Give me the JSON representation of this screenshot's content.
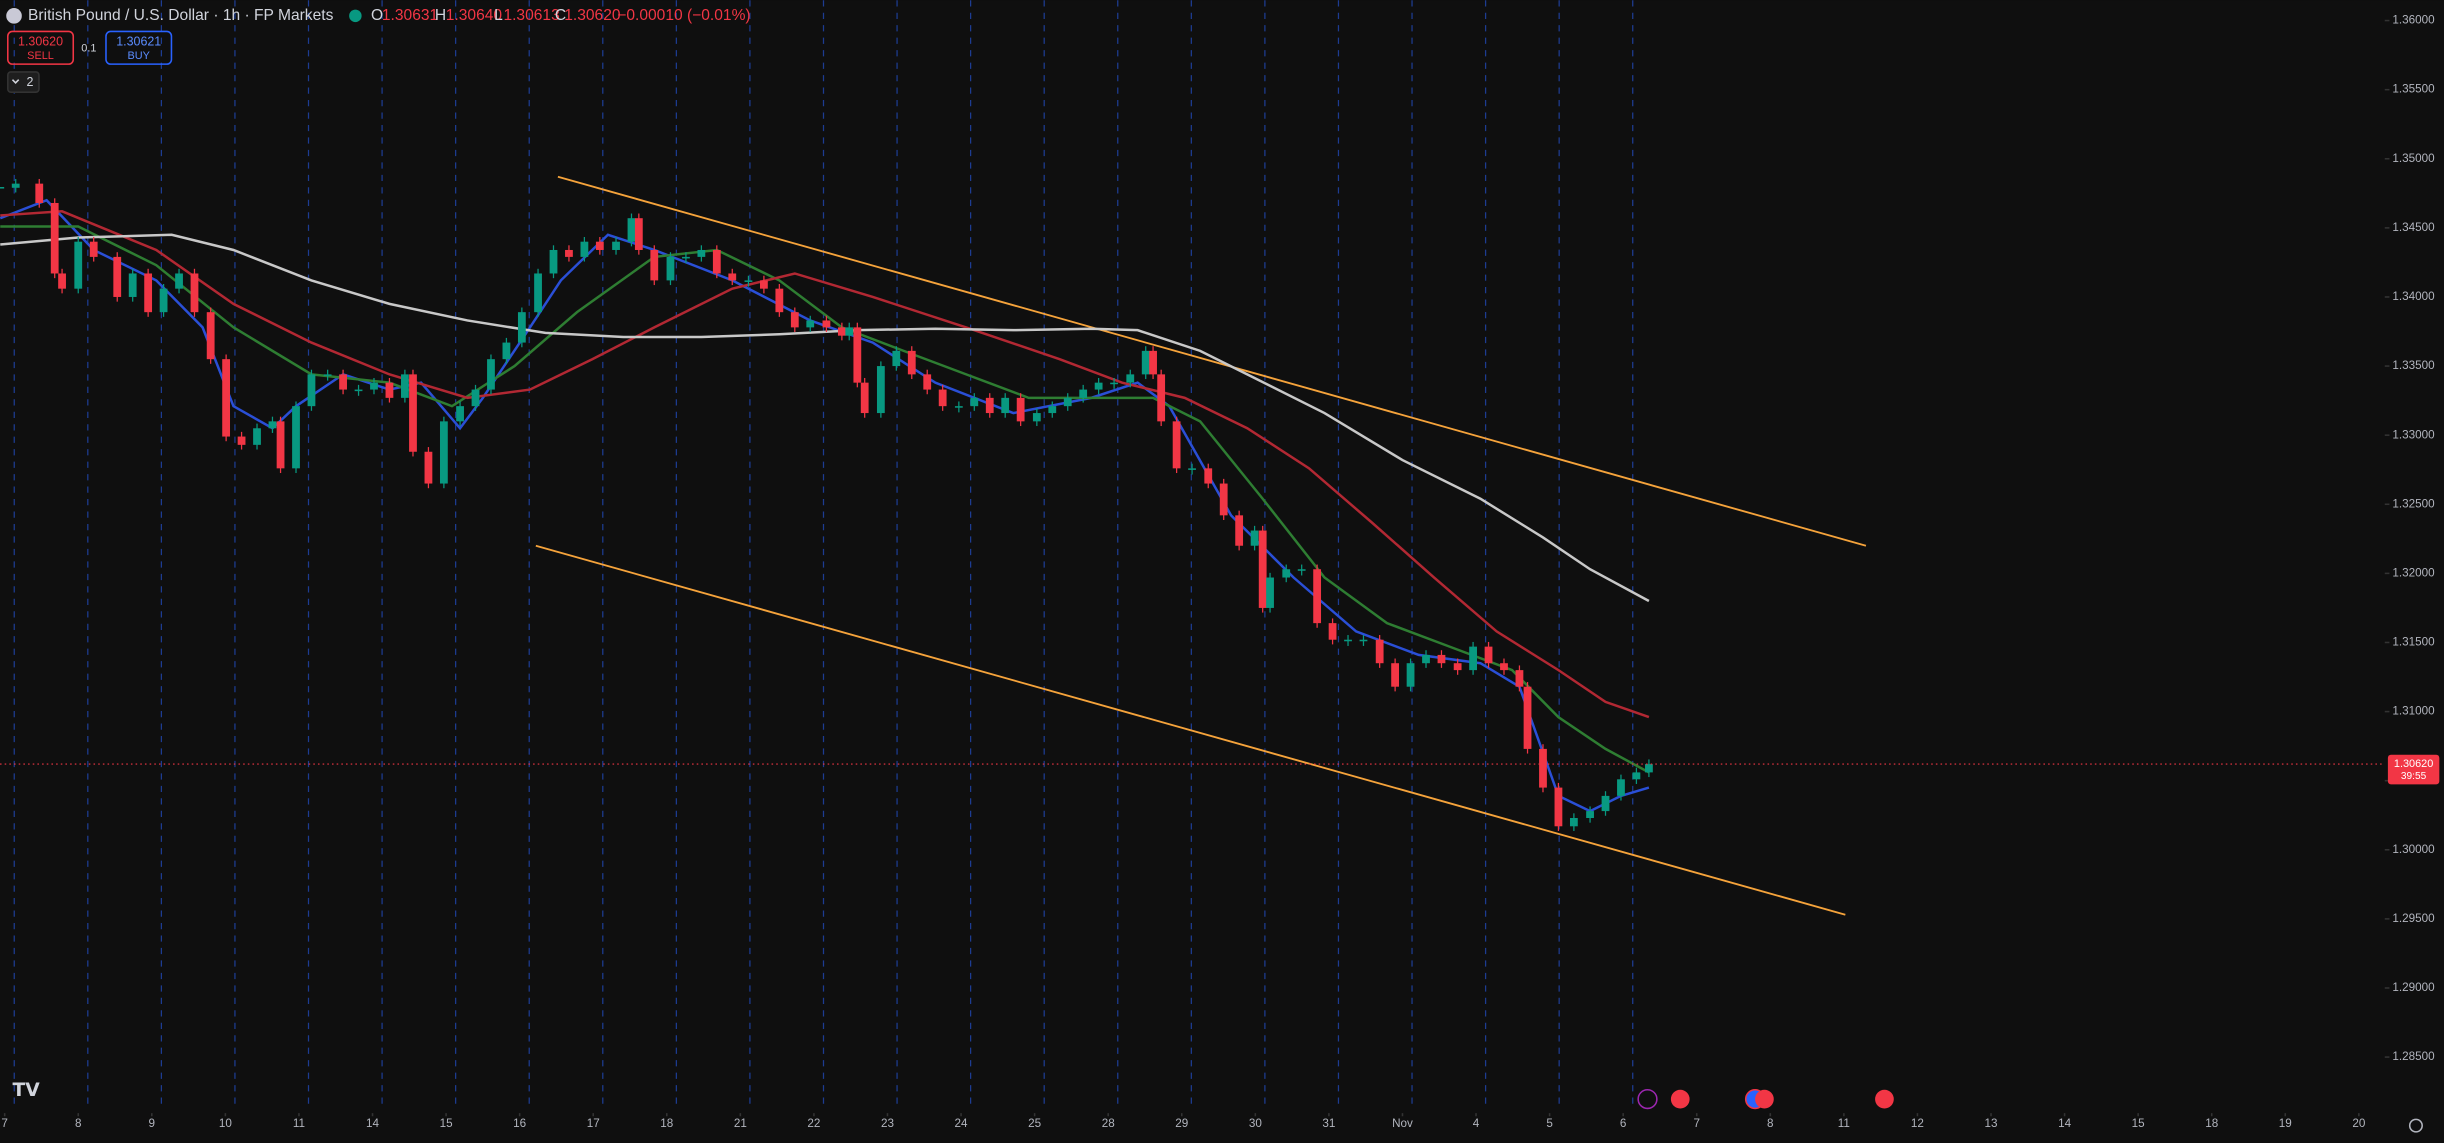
{
  "header": {
    "symbol": "British Pound / U.S. Dollar · 1h · FP Markets",
    "o_label": "O",
    "open": "1.30631",
    "h_label": "H",
    "high": "1.30640",
    "l_label": "L",
    "low": "1.30613",
    "c_label": "C",
    "close": "1.30620",
    "change": "−0.00010 (−0.01%)",
    "sell_price": "1.30620",
    "sell_label": "SELL",
    "spread": "0.1",
    "buy_price": "1.30621",
    "buy_label": "BUY",
    "indicators_count": "2"
  },
  "chart_data": {
    "type": "candlestick",
    "xlim": [
      -0.0636,
      32.31
    ],
    "ylim": [
      1.28117,
      1.36147
    ],
    "xticks": [
      {
        "value": 0,
        "label": "7"
      },
      {
        "value": 1,
        "label": "8"
      },
      {
        "value": 2,
        "label": "9"
      },
      {
        "value": 3,
        "label": "10"
      },
      {
        "value": 4,
        "label": "11"
      },
      {
        "value": 5,
        "label": "14"
      },
      {
        "value": 6,
        "label": "15"
      },
      {
        "value": 7,
        "label": "16"
      },
      {
        "value": 8,
        "label": "17"
      },
      {
        "value": 9,
        "label": "18"
      },
      {
        "value": 10,
        "label": "21"
      },
      {
        "value": 11,
        "label": "22"
      },
      {
        "value": 12,
        "label": "23"
      },
      {
        "value": 13,
        "label": "24"
      },
      {
        "value": 14,
        "label": "25"
      },
      {
        "value": 15,
        "label": "28"
      },
      {
        "value": 16,
        "label": "29"
      },
      {
        "value": 17,
        "label": "30"
      },
      {
        "value": 18,
        "label": "31"
      },
      {
        "value": 19,
        "label": "Nov"
      },
      {
        "value": 20,
        "label": "4"
      },
      {
        "value": 21,
        "label": "5"
      },
      {
        "value": 22,
        "label": "6"
      },
      {
        "value": 23,
        "label": "7"
      },
      {
        "value": 24,
        "label": "8"
      },
      {
        "value": 25,
        "label": "11"
      },
      {
        "value": 26,
        "label": "12"
      },
      {
        "value": 27,
        "label": "13"
      },
      {
        "value": 28,
        "label": "14"
      },
      {
        "value": 29,
        "label": "15"
      },
      {
        "value": 30,
        "label": "18"
      },
      {
        "value": 31,
        "label": "19"
      },
      {
        "value": 32,
        "label": "20"
      }
    ],
    "yticks": [
      {
        "value": 1.36,
        "label": "1.36000"
      },
      {
        "value": 1.355,
        "label": "1.35500"
      },
      {
        "value": 1.35,
        "label": "1.35000"
      },
      {
        "value": 1.345,
        "label": "1.34500"
      },
      {
        "value": 1.34,
        "label": "1.34000"
      },
      {
        "value": 1.335,
        "label": "1.33500"
      },
      {
        "value": 1.33,
        "label": "1.33000"
      },
      {
        "value": 1.325,
        "label": "1.32500"
      },
      {
        "value": 1.32,
        "label": "1.32000"
      },
      {
        "value": 1.315,
        "label": "1.31500"
      },
      {
        "value": 1.31,
        "label": "1.31000"
      },
      {
        "value": 1.305,
        "label": "1.30500"
      },
      {
        "value": 1.3,
        "label": "1.30000"
      },
      {
        "value": 1.295,
        "label": "1.29500"
      },
      {
        "value": 1.29,
        "label": "1.29000"
      },
      {
        "value": 1.285,
        "label": "1.28500"
      }
    ],
    "up_color": "#089981",
    "down_color": "#f23645",
    "price": {
      "x": [
        -0.06,
        0.15,
        0.47,
        0.68,
        0.78,
        1.0,
        1.21,
        1.53,
        1.74,
        1.95,
        2.16,
        2.37,
        2.58,
        2.8,
        3.01,
        3.22,
        3.43,
        3.64,
        3.75,
        3.96,
        4.17,
        4.39,
        4.6,
        4.81,
        5.02,
        5.23,
        5.44,
        5.55,
        5.76,
        5.97,
        6.19,
        6.4,
        6.61,
        6.82,
        7.03,
        7.25,
        7.46,
        7.67,
        7.88,
        8.09,
        8.31,
        8.52,
        8.62,
        8.83,
        9.05,
        9.26,
        9.47,
        9.68,
        9.89,
        10.11,
        10.32,
        10.53,
        10.74,
        10.95,
        11.17,
        11.38,
        11.48,
        11.59,
        11.69,
        11.91,
        12.12,
        12.33,
        12.54,
        12.75,
        12.97,
        13.18,
        13.39,
        13.6,
        13.81,
        14.03,
        14.24,
        14.45,
        14.66,
        14.87,
        15.08,
        15.3,
        15.51,
        15.61,
        15.72,
        15.93,
        16.14,
        16.36,
        16.57,
        16.78,
        16.99,
        17.1,
        17.2,
        17.42,
        17.63,
        17.84,
        18.05,
        18.26,
        18.47,
        18.69,
        18.9,
        19.11,
        19.32,
        19.53,
        19.75,
        19.96,
        20.17,
        20.38,
        20.59,
        20.7,
        20.91,
        21.12,
        21.33,
        21.55,
        21.76,
        21.97,
        22.18,
        22.35
      ],
      "close": [
        1.3479,
        1.3482,
        1.3468,
        1.3417,
        1.3406,
        1.344,
        1.3429,
        1.34,
        1.3417,
        1.3389,
        1.3406,
        1.3417,
        1.3389,
        1.3355,
        1.3299,
        1.3293,
        1.3305,
        1.331,
        1.3276,
        1.3321,
        1.3344,
        1.3344,
        1.3333,
        1.3333,
        1.3338,
        1.3327,
        1.3344,
        1.3288,
        1.3265,
        1.331,
        1.3321,
        1.3333,
        1.3355,
        1.3367,
        1.3389,
        1.3417,
        1.3434,
        1.3429,
        1.344,
        1.3434,
        1.344,
        1.3457,
        1.3434,
        1.3412,
        1.3429,
        1.3429,
        1.3434,
        1.3417,
        1.3412,
        1.3412,
        1.3406,
        1.3389,
        1.3378,
        1.3383,
        1.3378,
        1.3372,
        1.3378,
        1.3338,
        1.3316,
        1.335,
        1.3361,
        1.3344,
        1.3333,
        1.3321,
        1.3321,
        1.3327,
        1.3316,
        1.3327,
        1.331,
        1.3316,
        1.3321,
        1.3327,
        1.3333,
        1.3338,
        1.3338,
        1.3344,
        1.3361,
        1.3344,
        1.331,
        1.3276,
        1.3276,
        1.3265,
        1.3242,
        1.322,
        1.3231,
        1.3175,
        1.3197,
        1.3203,
        1.3203,
        1.3164,
        1.3152,
        1.3152,
        1.3152,
        1.3135,
        1.3118,
        1.3135,
        1.3141,
        1.3135,
        1.313,
        1.3147,
        1.3135,
        1.313,
        1.3118,
        1.3073,
        1.3045,
        1.3017,
        1.3023,
        1.3028,
        1.3039,
        1.3051,
        1.3056,
        1.3062
      ]
    },
    "series": [
      {
        "color": "#2a4fd6",
        "x": [
          -0.06,
          0.57,
          1.21,
          2.06,
          2.69,
          3.11,
          3.64,
          3.96,
          4.6,
          5.23,
          5.66,
          6.19,
          6.5,
          7.14,
          7.56,
          8.2,
          8.83,
          9.89,
          10.95,
          11.8,
          12.65,
          13.71,
          14.77,
          15.4,
          15.83,
          16.67,
          17.52,
          18.37,
          19.22,
          20.06,
          20.59,
          21.12,
          21.55,
          21.97,
          22.35
        ],
        "values": [
          1.3457,
          1.347,
          1.3434,
          1.3412,
          1.3378,
          1.3321,
          1.3305,
          1.3321,
          1.3344,
          1.3333,
          1.3338,
          1.3305,
          1.3327,
          1.3378,
          1.3412,
          1.3445,
          1.3434,
          1.3412,
          1.3383,
          1.3367,
          1.3338,
          1.3316,
          1.3327,
          1.3338,
          1.3321,
          1.3242,
          1.3197,
          1.3158,
          1.3141,
          1.3135,
          1.3118,
          1.3039,
          1.3028,
          1.3039,
          1.3045
        ]
      },
      {
        "color": "#2e7d32",
        "x": [
          -0.06,
          1.0,
          2.06,
          3.11,
          4.17,
          5.23,
          6.08,
          6.93,
          7.78,
          8.83,
          9.68,
          10.53,
          11.38,
          12.22,
          13.07,
          13.92,
          14.77,
          15.61,
          16.25,
          17.1,
          17.94,
          18.79,
          19.64,
          20.49,
          21.12,
          21.76,
          22.35
        ],
        "values": [
          1.3451,
          1.3451,
          1.3423,
          1.3378,
          1.3344,
          1.3338,
          1.3321,
          1.335,
          1.3389,
          1.3429,
          1.3434,
          1.3412,
          1.3378,
          1.3361,
          1.3344,
          1.3327,
          1.3327,
          1.3327,
          1.331,
          1.3254,
          1.3197,
          1.3164,
          1.3147,
          1.313,
          1.3096,
          1.3073,
          1.3056
        ]
      },
      {
        "color": "#b22833",
        "x": [
          -0.06,
          0.78,
          2.06,
          3.11,
          4.17,
          5.23,
          6.29,
          7.14,
          7.99,
          8.83,
          9.89,
          10.74,
          11.8,
          13.07,
          14.34,
          15.19,
          16.04,
          16.89,
          17.73,
          18.58,
          19.43,
          20.28,
          21.12,
          21.76,
          22.35
        ],
        "values": [
          1.3459,
          1.3462,
          1.3434,
          1.3395,
          1.3367,
          1.3344,
          1.3327,
          1.3333,
          1.3355,
          1.3378,
          1.3406,
          1.3417,
          1.34,
          1.3378,
          1.3355,
          1.3338,
          1.3327,
          1.3305,
          1.3276,
          1.3237,
          1.3197,
          1.3158,
          1.313,
          1.3107,
          1.3096
        ]
      },
      {
        "color": "#c8c8c8",
        "x": [
          -0.06,
          1.0,
          2.27,
          3.11,
          4.17,
          5.23,
          6.29,
          7.35,
          8.41,
          9.47,
          10.53,
          11.59,
          12.65,
          13.71,
          14.77,
          15.4,
          16.25,
          16.89,
          17.94,
          19.0,
          20.06,
          20.91,
          21.55,
          22.35
        ],
        "values": [
          1.3438,
          1.3443,
          1.3445,
          1.3434,
          1.3412,
          1.3395,
          1.3383,
          1.3374,
          1.3371,
          1.3371,
          1.3373,
          1.3376,
          1.3377,
          1.3376,
          1.3377,
          1.3376,
          1.3361,
          1.3344,
          1.3316,
          1.3282,
          1.3254,
          1.3226,
          1.3203,
          1.318
        ]
      }
    ],
    "trend_color": "#f5a33b",
    "trend_lines": [
      {
        "x": [
          7.52,
          25.3
        ],
        "values": [
          1.3487,
          1.322
        ]
      },
      {
        "x": [
          7.22,
          25.02
        ],
        "values": [
          1.322,
          1.2953
        ]
      }
    ],
    "last_price": 1.3062,
    "last_price_label": "1.30620",
    "countdown": "39:55"
  }
}
